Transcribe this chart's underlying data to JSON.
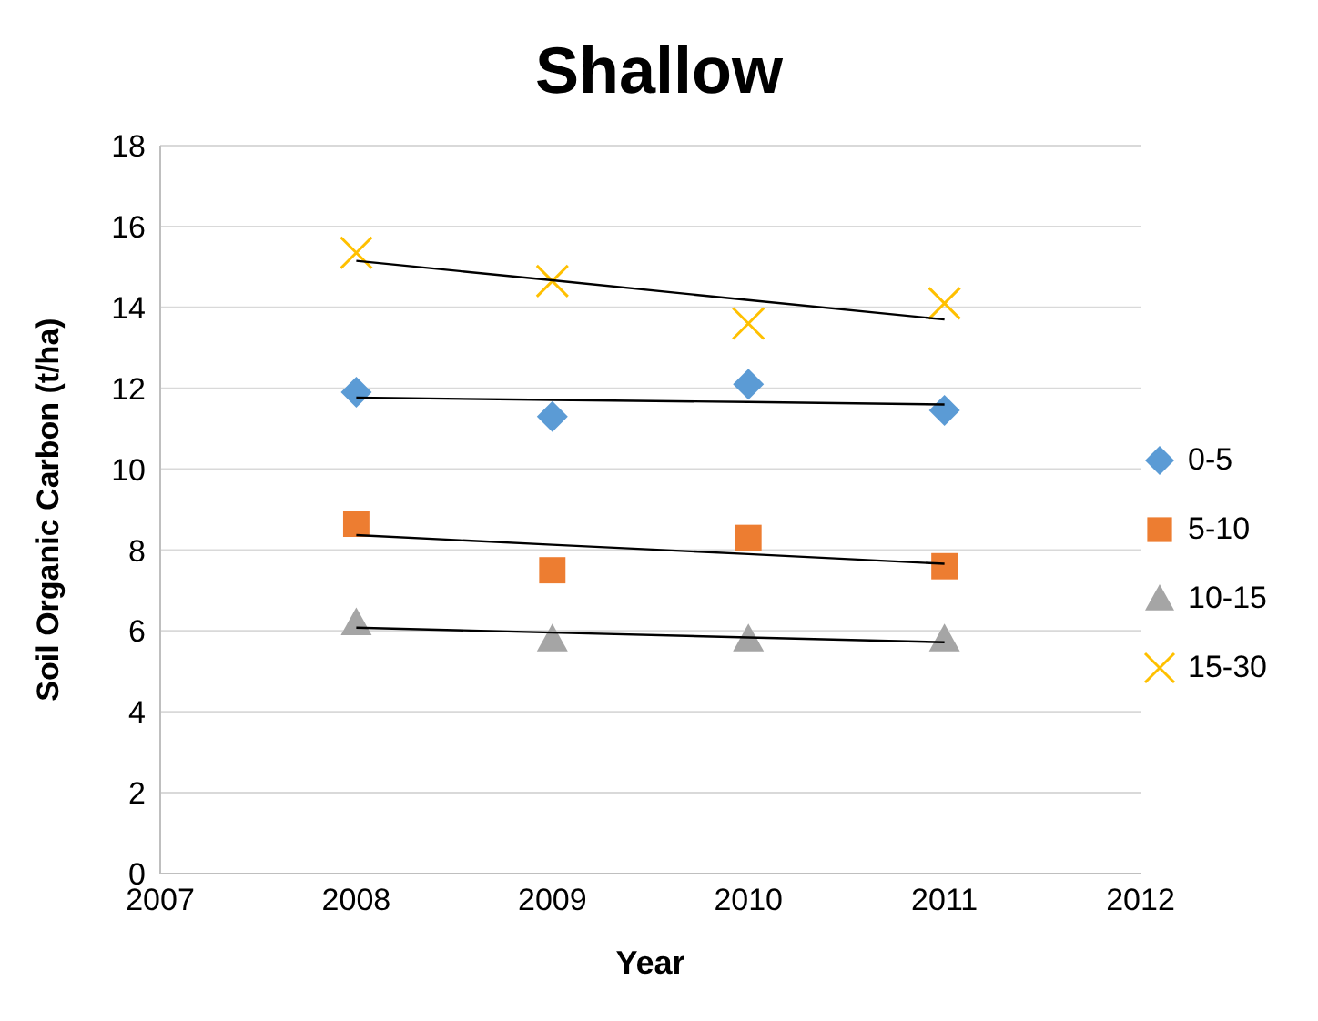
{
  "chart_data": {
    "type": "scatter",
    "title": "Shallow",
    "xlabel": "Year",
    "ylabel": "Soil Organic Carbon (t/ha)",
    "x": [
      2008,
      2009,
      2010,
      2011
    ],
    "series": [
      {
        "name": "0-5",
        "color": "#5b9bd5",
        "marker": "diamond",
        "values": [
          11.9,
          11.3,
          12.1,
          11.45
        ]
      },
      {
        "name": "5-10",
        "color": "#ed7d31",
        "marker": "square",
        "values": [
          8.65,
          7.5,
          8.3,
          7.6
        ]
      },
      {
        "name": "10-15",
        "color": "#a5a5a5",
        "marker": "triangle",
        "values": [
          6.2,
          5.8,
          5.8,
          5.8
        ]
      },
      {
        "name": "15-30",
        "color": "#ffc000",
        "marker": "cross",
        "values": [
          15.35,
          14.65,
          13.6,
          14.1
        ]
      },
      {
        "type": "line",
        "color": "#000000",
        "marker": "none",
        "values": [
          11.77,
          11.71,
          11.66,
          11.6
        ]
      },
      {
        "type": "line",
        "color": "#000000",
        "marker": "none",
        "values": [
          8.37,
          8.13,
          7.9,
          7.66
        ]
      },
      {
        "type": "line",
        "color": "#000000",
        "marker": "none",
        "values": [
          6.08,
          5.96,
          5.84,
          5.72
        ]
      },
      {
        "type": "line",
        "color": "#000000",
        "marker": "none",
        "values": [
          15.15,
          14.67,
          14.18,
          13.7
        ]
      }
    ],
    "xlim": [
      2007,
      2012
    ],
    "xticks": [
      2007,
      2008,
      2009,
      2010,
      2011,
      2012
    ],
    "ylim": [
      0,
      18
    ],
    "yticks": [
      0,
      2,
      4,
      6,
      8,
      10,
      12,
      14,
      16,
      18
    ],
    "grid": "y",
    "legend": "right"
  }
}
